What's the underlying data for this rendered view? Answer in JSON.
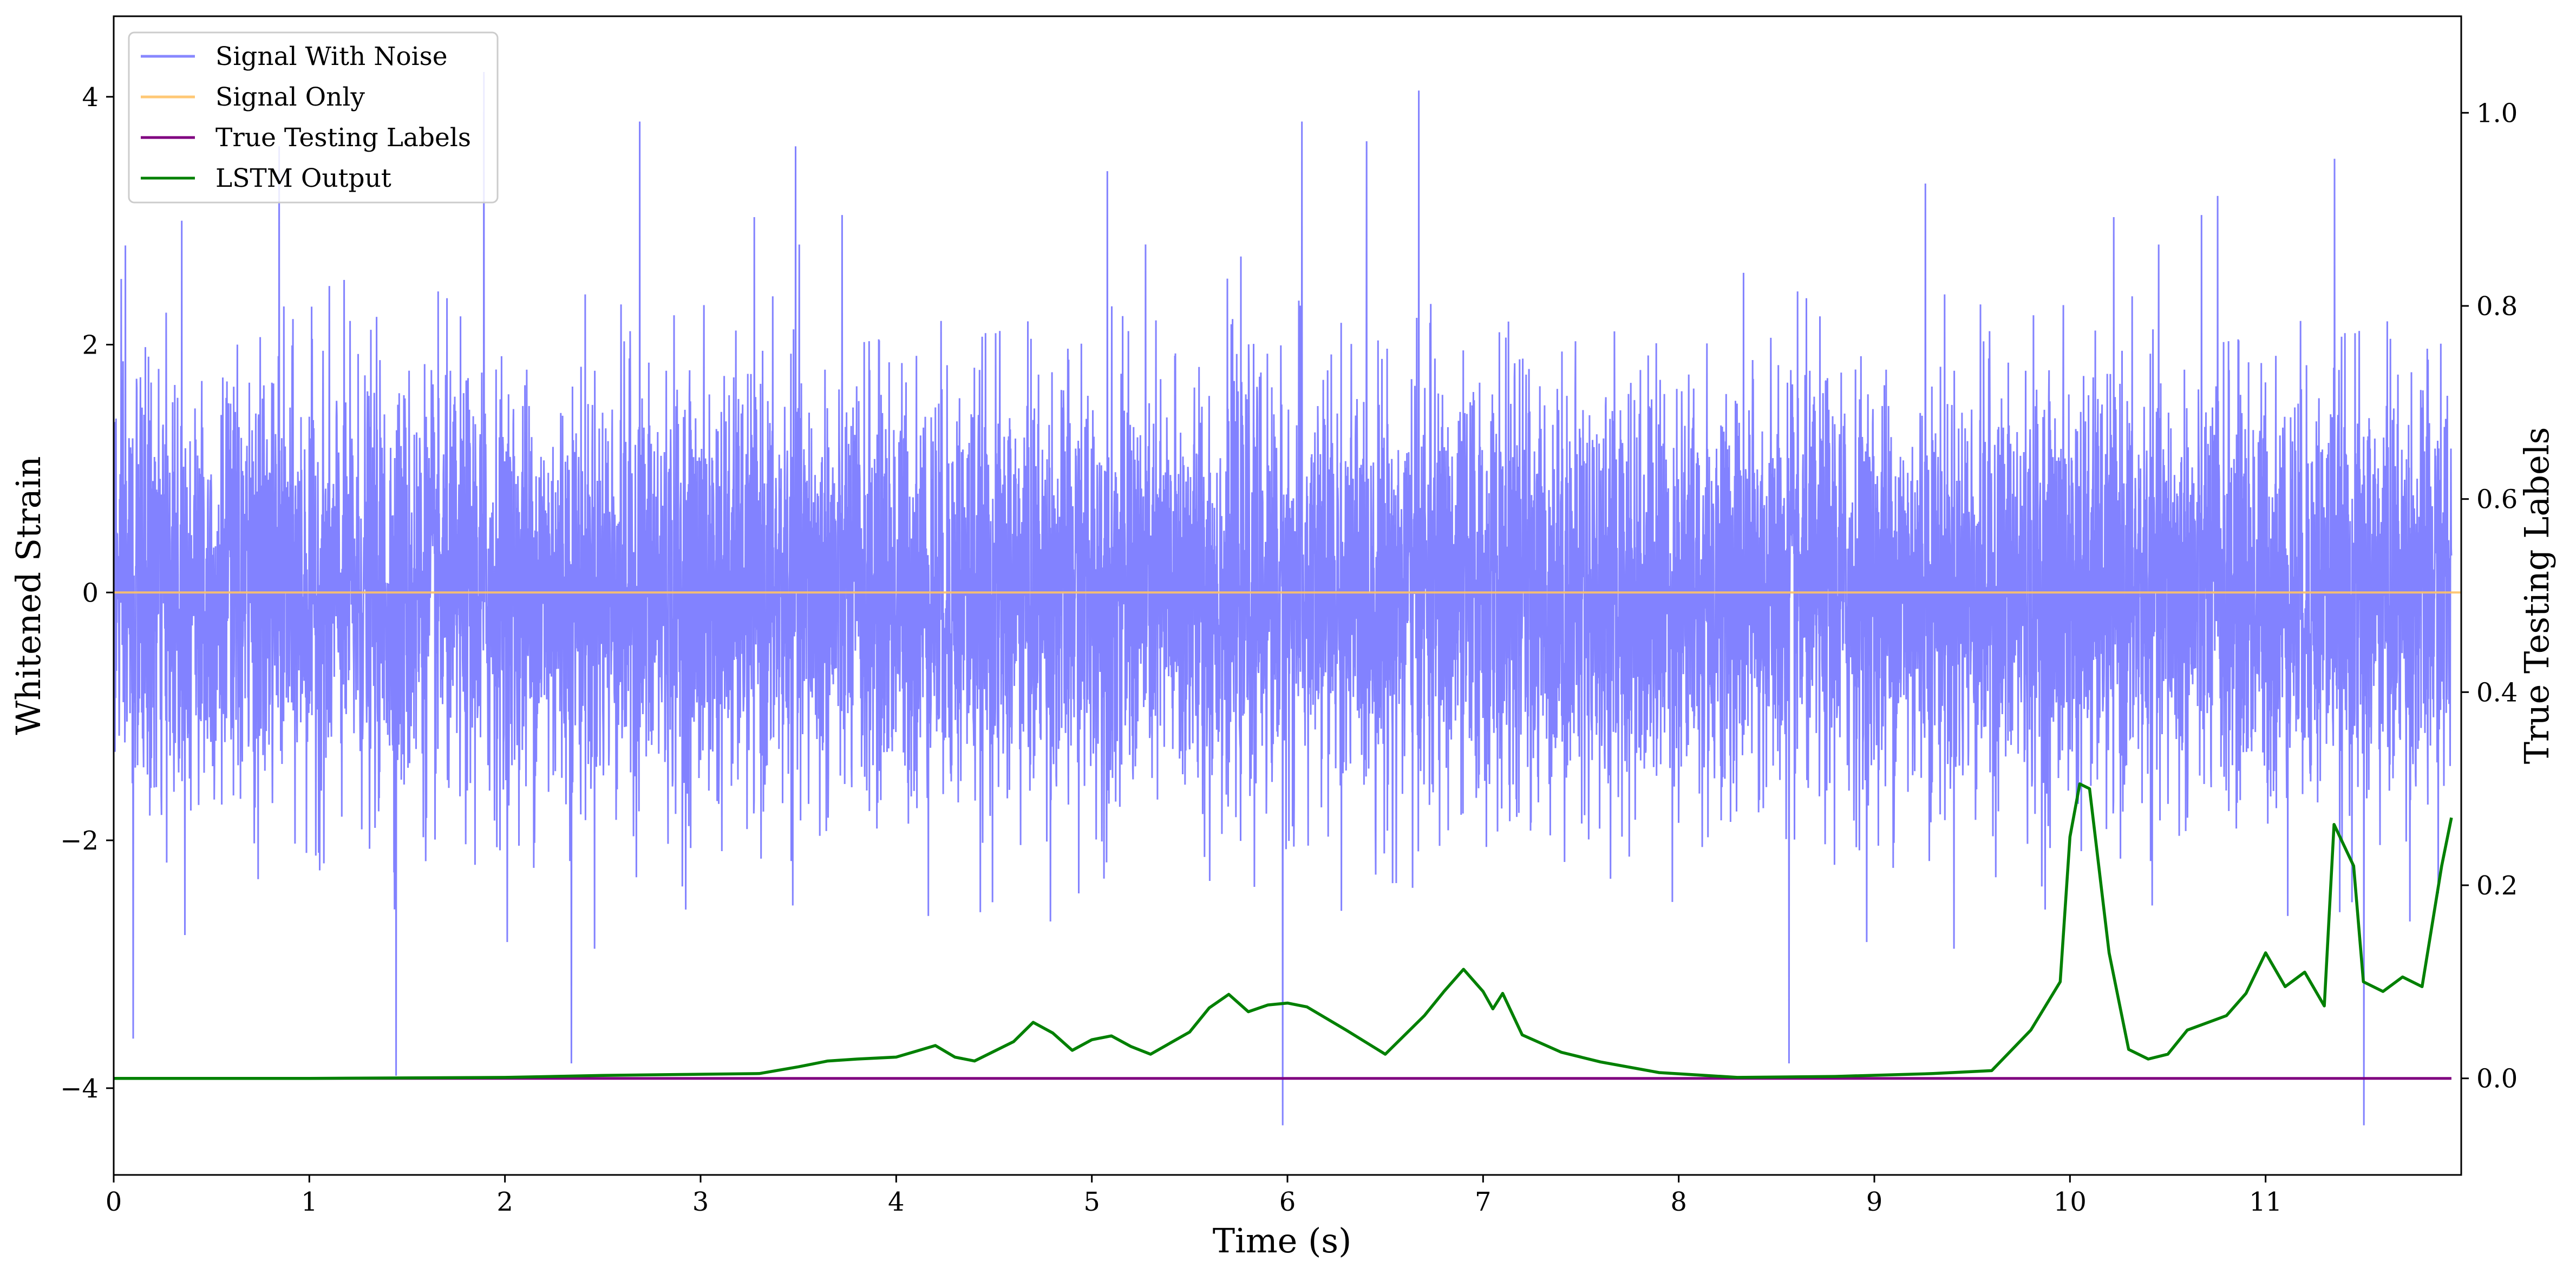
{
  "chart_data": {
    "type": "line",
    "xlabel": "Time (s)",
    "ylabel_left": "Whitened Strain",
    "ylabel_right": "True Testing Labels",
    "xlim": [
      0,
      12
    ],
    "ylim_left": [
      -4.7,
      4.65
    ],
    "ylim_right": [
      -0.1,
      1.1
    ],
    "x_ticks": [
      0,
      1,
      2,
      3,
      4,
      5,
      6,
      7,
      8,
      9,
      10,
      11
    ],
    "y_ticks_left": [
      -4,
      -2,
      0,
      2,
      4
    ],
    "y_ticks_left_labels": [
      "−4",
      "−2",
      "0",
      "2",
      "4"
    ],
    "y_ticks_right": [
      0.0,
      0.2,
      0.4,
      0.6,
      0.8,
      1.0
    ],
    "y_ticks_right_labels": [
      "0.0",
      "0.2",
      "0.4",
      "0.6",
      "0.8",
      "1.0"
    ],
    "grid": false,
    "legend_position": "top-left",
    "series": [
      {
        "name": "Signal With Noise",
        "axis": "left",
        "color": "#7b7bff",
        "style": "noise",
        "approx_std": 0.85,
        "approx_range": [
          -4.3,
          4.25
        ],
        "notable_peaks": [
          [
            0.06,
            2.8
          ],
          [
            0.35,
            3.0
          ],
          [
            0.85,
            3.6
          ],
          [
            1.9,
            4.2
          ],
          [
            2.7,
            3.8
          ],
          [
            3.5,
            3.6
          ],
          [
            5.1,
            3.4
          ],
          [
            6.1,
            3.8
          ],
          [
            6.7,
            4.05
          ],
          [
            9.3,
            3.3
          ],
          [
            10.8,
            3.2
          ],
          [
            11.4,
            3.5
          ]
        ],
        "notable_troughs": [
          [
            0.1,
            -3.6
          ],
          [
            1.45,
            -3.9
          ],
          [
            2.35,
            -3.8
          ],
          [
            6.0,
            -4.3
          ],
          [
            8.6,
            -3.8
          ],
          [
            11.55,
            -4.3
          ]
        ]
      },
      {
        "name": "Signal Only",
        "axis": "left",
        "color": "#ffc266",
        "x": [
          0,
          12
        ],
        "values": [
          0,
          0
        ]
      },
      {
        "name": "True Testing Labels",
        "axis": "right",
        "color": "#800080",
        "x": [
          0,
          11.95
        ],
        "values": [
          0,
          0
        ]
      },
      {
        "name": "LSTM Output",
        "axis": "right",
        "color": "#008000",
        "x": [
          0,
          1,
          2,
          2.5,
          2.9,
          3.3,
          3.5,
          3.65,
          3.8,
          4.0,
          4.1,
          4.2,
          4.3,
          4.4,
          4.6,
          4.7,
          4.8,
          4.9,
          5.0,
          5.1,
          5.2,
          5.3,
          5.5,
          5.6,
          5.7,
          5.8,
          5.9,
          6.0,
          6.1,
          6.3,
          6.5,
          6.7,
          6.8,
          6.9,
          7.0,
          7.05,
          7.1,
          7.2,
          7.4,
          7.6,
          7.9,
          8.3,
          8.8,
          9.3,
          9.6,
          9.8,
          9.95,
          10.0,
          10.05,
          10.1,
          10.2,
          10.3,
          10.4,
          10.5,
          10.6,
          10.8,
          10.9,
          11.0,
          11.1,
          11.2,
          11.3,
          11.35,
          11.45,
          11.5,
          11.6,
          11.7,
          11.8,
          11.9,
          11.95
        ],
        "values": [
          0,
          0,
          0.001,
          0.003,
          0.004,
          0.005,
          0.012,
          0.018,
          0.02,
          0.022,
          0.028,
          0.034,
          0.022,
          0.018,
          0.038,
          0.058,
          0.047,
          0.029,
          0.04,
          0.044,
          0.033,
          0.025,
          0.048,
          0.073,
          0.087,
          0.069,
          0.076,
          0.078,
          0.074,
          0.05,
          0.025,
          0.065,
          0.09,
          0.113,
          0.09,
          0.072,
          0.088,
          0.045,
          0.027,
          0.017,
          0.006,
          0.001,
          0.002,
          0.005,
          0.008,
          0.05,
          0.1,
          0.25,
          0.305,
          0.3,
          0.13,
          0.03,
          0.02,
          0.025,
          0.05,
          0.065,
          0.088,
          0.13,
          0.095,
          0.11,
          0.075,
          0.263,
          0.22,
          0.1,
          0.09,
          0.105,
          0.095,
          0.22,
          0.27
        ]
      }
    ]
  }
}
